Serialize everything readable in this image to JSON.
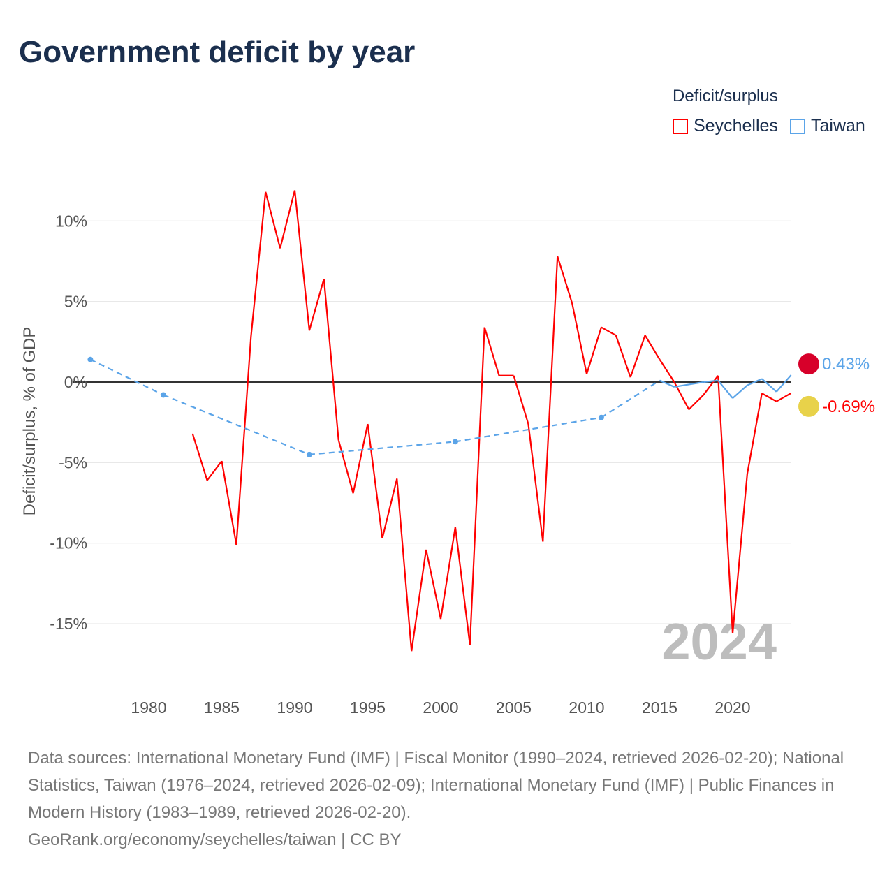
{
  "chart_data": {
    "type": "line",
    "title": "Government deficit by year",
    "ylabel": "Deficit/surplus, % of GDP",
    "xlabel": "",
    "xlim": [
      1975.2,
      2024
    ],
    "ylim": [
      -19,
      13.5
    ],
    "xticks": [
      1980,
      1985,
      1990,
      1995,
      2000,
      2005,
      2010,
      2015,
      2020
    ],
    "yticks": [
      10,
      5,
      0,
      -5,
      -10,
      -15
    ],
    "ytick_labels": [
      "10%",
      "5%",
      "0%",
      "-5%",
      "-10%",
      "-15%"
    ],
    "grid": true,
    "legend_title": "Deficit/surplus",
    "legend_position": "top-right",
    "year_watermark": "2024",
    "series": [
      {
        "name": "Seychelles",
        "color": "#ff0000",
        "end_label": "-0.69%",
        "x": [
          1983,
          1984,
          1985,
          1986,
          1987,
          1988,
          1989,
          1990,
          1991,
          1992,
          1993,
          1994,
          1995,
          1996,
          1997,
          1998,
          1999,
          2000,
          2001,
          2002,
          2003,
          2004,
          2005,
          2006,
          2007,
          2008,
          2009,
          2010,
          2011,
          2012,
          2013,
          2014,
          2015,
          2016,
          2017,
          2018,
          2019,
          2020,
          2021,
          2022,
          2023,
          2024
        ],
        "y": [
          -3.2,
          -6.1,
          -4.9,
          -10.1,
          2.8,
          11.8,
          8.3,
          11.9,
          3.2,
          6.4,
          -3.6,
          -6.9,
          -2.6,
          -9.7,
          -6.0,
          -16.7,
          -10.4,
          -14.7,
          -9.0,
          -16.3,
          3.4,
          0.4,
          0.4,
          -2.6,
          -9.9,
          7.8,
          4.9,
          0.5,
          3.4,
          2.9,
          0.3,
          2.9,
          1.4,
          0.0,
          -1.7,
          -0.8,
          0.4,
          -15.6,
          -5.7,
          -0.7,
          -1.2,
          -0.69
        ]
      },
      {
        "name": "Taiwan",
        "color": "#5ba4e8",
        "end_label": "0.43%",
        "x": [
          1976,
          1981,
          1991,
          2001,
          2011,
          2015,
          2016,
          2017,
          2018,
          2019,
          2020,
          2021,
          2022,
          2023,
          2024
        ],
        "y": [
          1.4,
          -0.8,
          -4.5,
          -3.7,
          -2.2,
          0.1,
          -0.3,
          -0.15,
          0.0,
          0.1,
          -1.0,
          -0.2,
          0.2,
          -0.6,
          0.43
        ]
      }
    ]
  },
  "footer": {
    "sources": "Data sources: International Monetary Fund (IMF) | Fiscal Monitor (1990–2024, retrieved 2026-02-20); National Statistics, Taiwan (1976–2024, retrieved 2026-02-09); International Monetary Fund (IMF) | Public Finances in Modern History (1983–1989, retrieved 2026-02-20).",
    "credit": "GeoRank.org/economy/seychelles/taiwan | CC BY"
  }
}
